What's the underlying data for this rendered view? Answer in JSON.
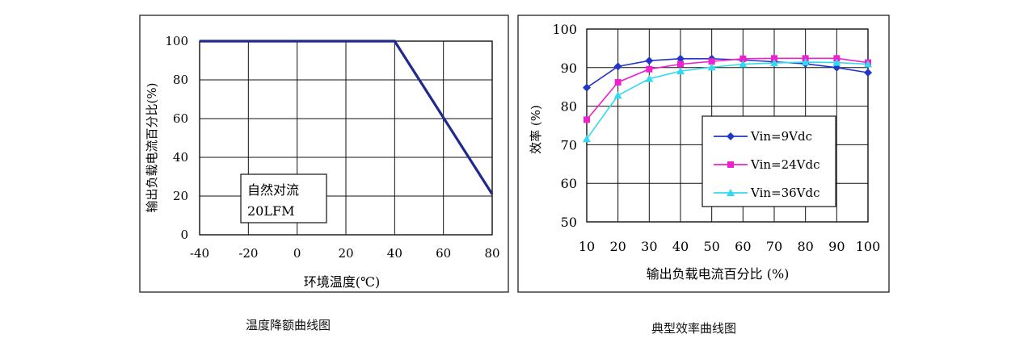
{
  "chart_data": [
    {
      "type": "line",
      "title": "",
      "caption": "温度降额曲线图",
      "xlabel": "环境温度(℃)",
      "ylabel": "输出负载电流百分比(%)",
      "xlim": [
        -40,
        80
      ],
      "ylim": [
        0,
        100
      ],
      "xticks": [
        "-40",
        "-20",
        "0",
        "20",
        "40",
        "60",
        "80"
      ],
      "yticks": [
        "0",
        "20",
        "40",
        "60",
        "80",
        "100"
      ],
      "grid": true,
      "annotation": [
        "自然对流",
        "20LFM"
      ],
      "series": [
        {
          "x": [
            -40,
            40,
            80
          ],
          "y": [
            100,
            100,
            21
          ],
          "color": "#1f2a8a"
        }
      ]
    },
    {
      "type": "line",
      "title": "",
      "caption": "典型效率曲线图",
      "xlabel": "输出负载电流百分比 (%)",
      "ylabel": "效率 (%)",
      "xlim": [
        10,
        100
      ],
      "ylim": [
        50,
        100
      ],
      "xticks": [
        "10",
        "20",
        "30",
        "40",
        "50",
        "60",
        "70",
        "80",
        "90",
        "100"
      ],
      "yticks": [
        "50",
        "60",
        "70",
        "80",
        "90",
        "100"
      ],
      "grid": true,
      "legend": "center-right",
      "categories": [
        10,
        20,
        30,
        40,
        50,
        60,
        70,
        80,
        90,
        100
      ],
      "series": [
        {
          "name": "Vin=9Vdc",
          "marker": "diamond",
          "color": "#2436c8",
          "values": [
            84.8,
            90.3,
            91.8,
            92.3,
            92.3,
            92.0,
            91.5,
            91.0,
            90.0,
            88.7
          ]
        },
        {
          "name": "Vin=24Vdc",
          "marker": "square",
          "color": "#ee22cc",
          "values": [
            76.5,
            86.2,
            89.6,
            90.9,
            91.6,
            92.3,
            92.4,
            92.4,
            92.4,
            91.3
          ]
        },
        {
          "name": "Vin=36Vdc",
          "marker": "triangle",
          "color": "#33d9ee",
          "values": [
            71.5,
            82.8,
            87.1,
            89.1,
            90.1,
            90.9,
            91.2,
            91.4,
            91.3,
            90.9
          ]
        }
      ]
    }
  ]
}
